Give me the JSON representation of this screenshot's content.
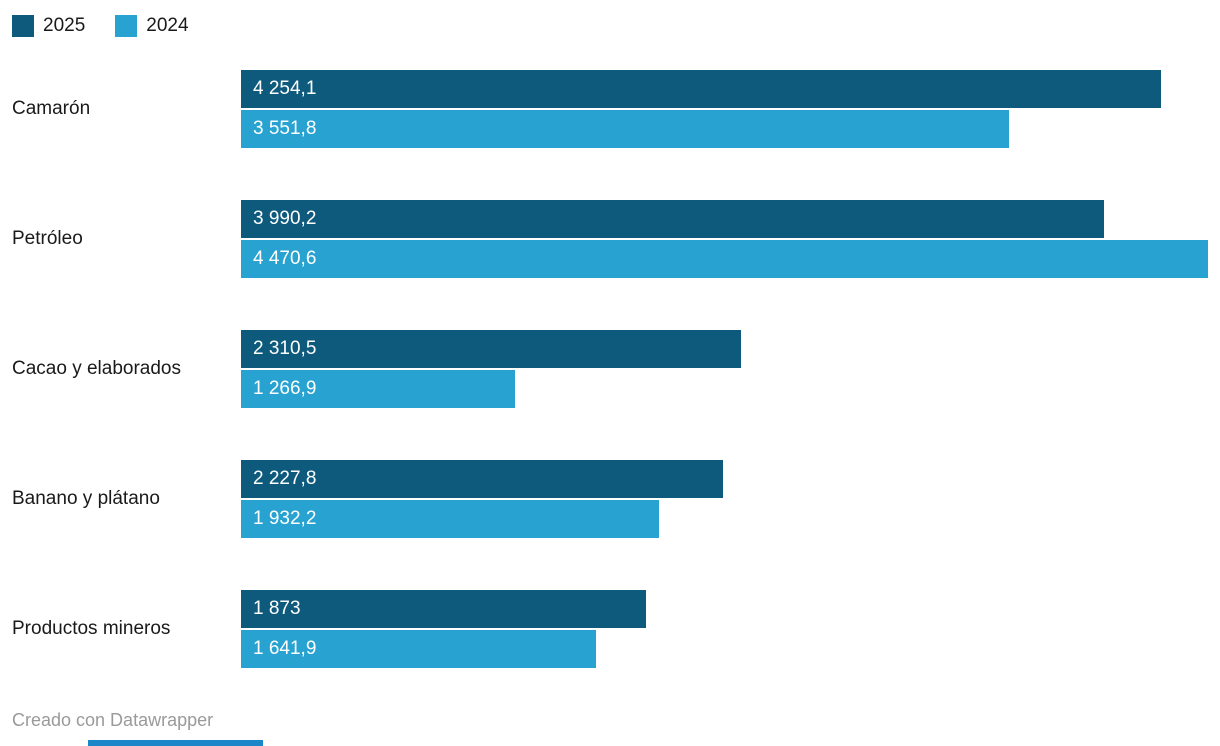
{
  "legend": {
    "items": [
      {
        "label": "2025",
        "color": "#0e5a7d"
      },
      {
        "label": "2024",
        "color": "#28a3d1"
      }
    ]
  },
  "footer": {
    "credit": "Creado con Datawrapper"
  },
  "artifacts": {
    "bottom_strip_color": "#1d86c8"
  },
  "chart_data": {
    "type": "bar",
    "orientation": "horizontal",
    "title": "",
    "xlabel": "",
    "ylabel": "",
    "grid": false,
    "legend_position": "top-left",
    "value_labels_inside": true,
    "xlim": [
      0,
      4470.6
    ],
    "categories": [
      "Camarón",
      "Petróleo",
      "Cacao y elaborados",
      "Banano y plátano",
      "Productos mineros"
    ],
    "series": [
      {
        "name": "2025",
        "color": "#0e5a7d",
        "values": [
          4254.1,
          3990.2,
          2310.5,
          2227.8,
          1873
        ],
        "labels": [
          "4 254,1",
          "3 990,2",
          "2 310,5",
          "2 227,8",
          "1 873"
        ]
      },
      {
        "name": "2024",
        "color": "#28a3d1",
        "values": [
          3551.8,
          4470.6,
          1266.9,
          1932.2,
          1641.9
        ],
        "labels": [
          "3 551,8",
          "4 470,6",
          "1 266,9",
          "1 932,2",
          "1 641,9"
        ]
      }
    ]
  }
}
